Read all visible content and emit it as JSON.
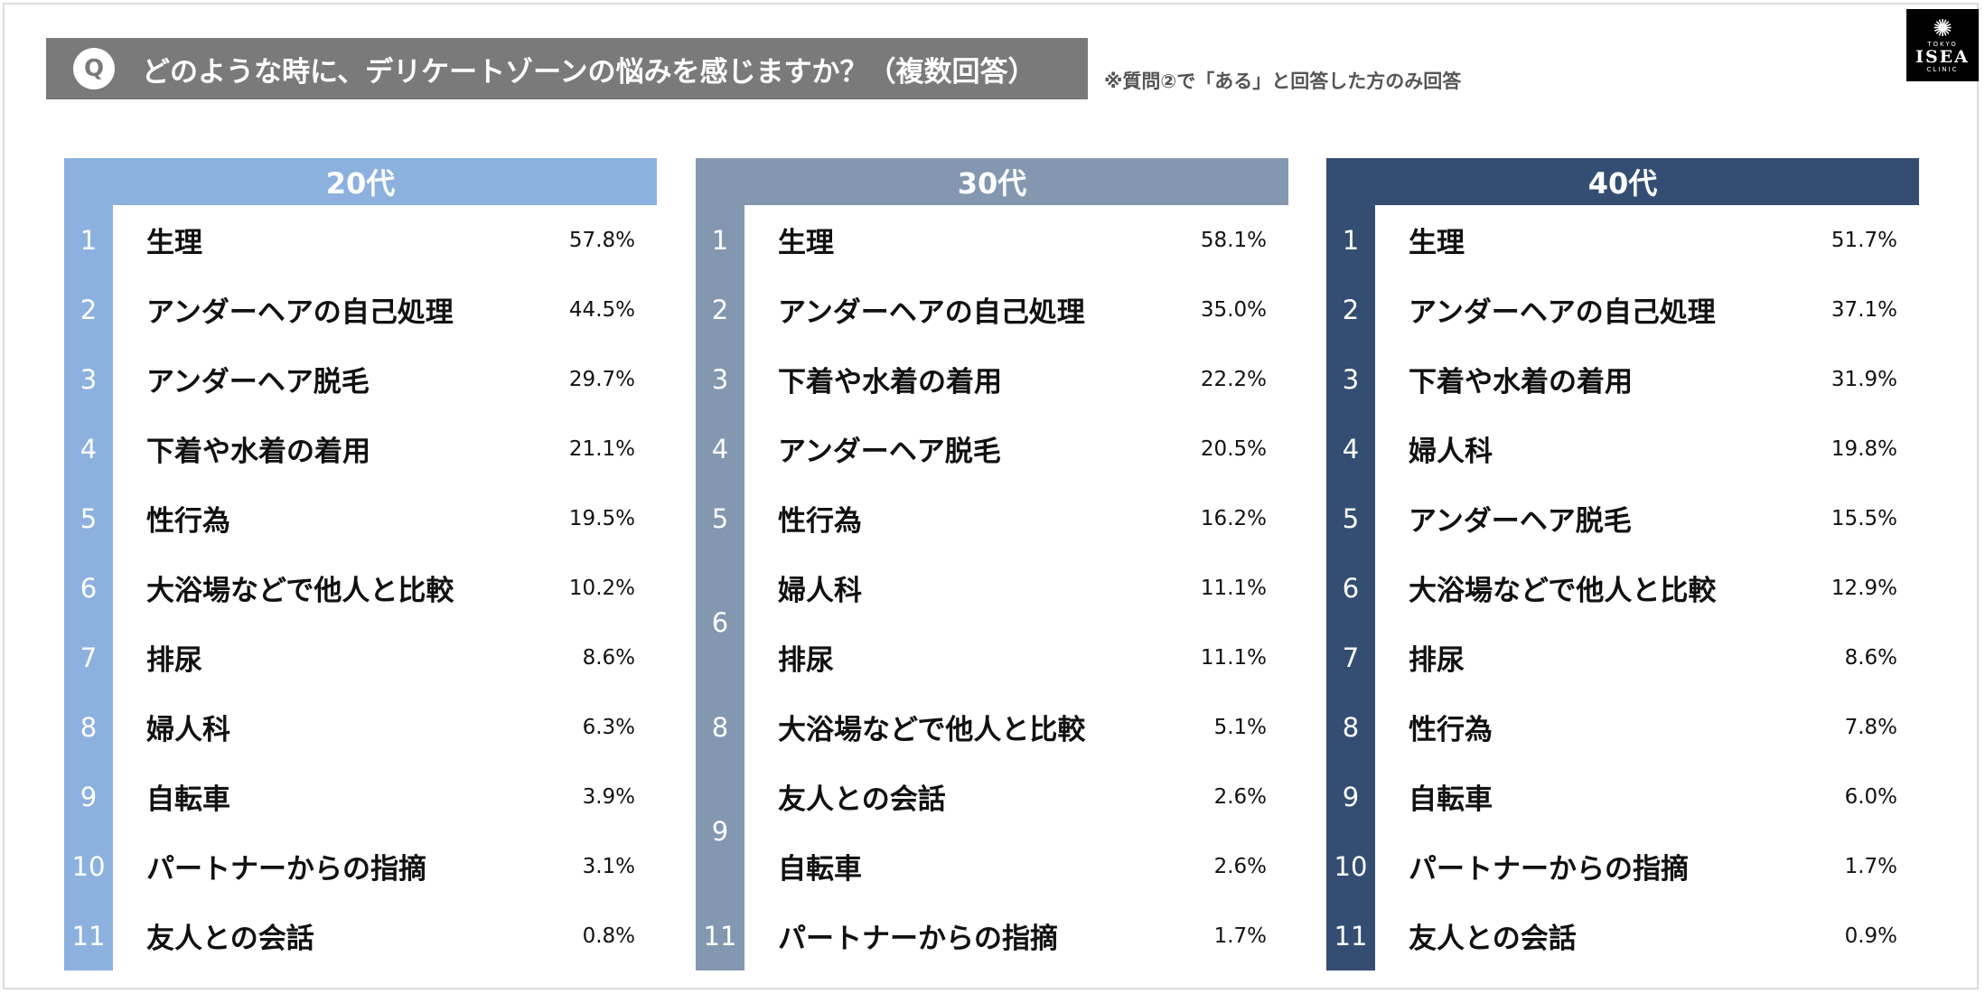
{
  "question": {
    "badge": "Q",
    "text": "どのような時に、デリケートゾーンの悩みを感じますか？（複数回答）",
    "note": "※質問②で「ある」と回答した方のみ回答"
  },
  "logo": {
    "tokyo": "TOKYO",
    "name": "ISEA",
    "clinic": "CLINIC"
  },
  "colors": {
    "panel20": "#8db1df",
    "panel30": "#8497b0",
    "panel40": "#344e73",
    "banner": "#7a7a7a"
  },
  "panels": [
    {
      "header": "20代",
      "ranks": [
        "1",
        "2",
        "3",
        "4",
        "5",
        "6",
        "7",
        "8",
        "9",
        "10",
        "11"
      ],
      "items": [
        {
          "label": "生理",
          "value": "57.8%"
        },
        {
          "label": "アンダーヘアの自己処理",
          "value": "44.5%"
        },
        {
          "label": "アンダーヘア脱毛",
          "value": "29.7%"
        },
        {
          "label": "下着や水着の着用",
          "value": "21.1%"
        },
        {
          "label": "性行為",
          "value": "19.5%"
        },
        {
          "label": "大浴場などで他人と比較",
          "value": "10.2%"
        },
        {
          "label": "排尿",
          "value": "8.6%"
        },
        {
          "label": "婦人科",
          "value": "6.3%"
        },
        {
          "label": "自転車",
          "value": "3.9%"
        },
        {
          "label": "パートナーからの指摘",
          "value": "3.1%"
        },
        {
          "label": "友人との会話",
          "value": "0.8%"
        }
      ]
    },
    {
      "header": "30代",
      "ranks": [
        "1",
        "2",
        "3",
        "4",
        "5",
        "6",
        "8",
        "9",
        "11"
      ],
      "items": [
        {
          "label": "生理",
          "value": "58.1%"
        },
        {
          "label": "アンダーヘアの自己処理",
          "value": "35.0%"
        },
        {
          "label": "下着や水着の着用",
          "value": "22.2%"
        },
        {
          "label": "アンダーヘア脱毛",
          "value": "20.5%"
        },
        {
          "label": "性行為",
          "value": "16.2%"
        },
        {
          "label": "婦人科",
          "value": "11.1%"
        },
        {
          "label": "排尿",
          "value": "11.1%"
        },
        {
          "label": "大浴場などで他人と比較",
          "value": "5.1%"
        },
        {
          "label": "友人との会話",
          "value": "2.6%"
        },
        {
          "label": "自転車",
          "value": "2.6%"
        },
        {
          "label": "パートナーからの指摘",
          "value": "1.7%"
        }
      ]
    },
    {
      "header": "40代",
      "ranks": [
        "1",
        "2",
        "3",
        "4",
        "5",
        "6",
        "7",
        "8",
        "9",
        "10",
        "11"
      ],
      "items": [
        {
          "label": "生理",
          "value": "51.7%"
        },
        {
          "label": "アンダーヘアの自己処理",
          "value": "37.1%"
        },
        {
          "label": "下着や水着の着用",
          "value": "31.9%"
        },
        {
          "label": "婦人科",
          "value": "19.8%"
        },
        {
          "label": "アンダーヘア脱毛",
          "value": "15.5%"
        },
        {
          "label": "大浴場などで他人と比較",
          "value": "12.9%"
        },
        {
          "label": "排尿",
          "value": "8.6%"
        },
        {
          "label": "性行為",
          "value": "7.8%"
        },
        {
          "label": "自転車",
          "value": "6.0%"
        },
        {
          "label": "パートナーからの指摘",
          "value": "1.7%"
        },
        {
          "label": "友人との会話",
          "value": "0.9%"
        }
      ]
    }
  ]
}
